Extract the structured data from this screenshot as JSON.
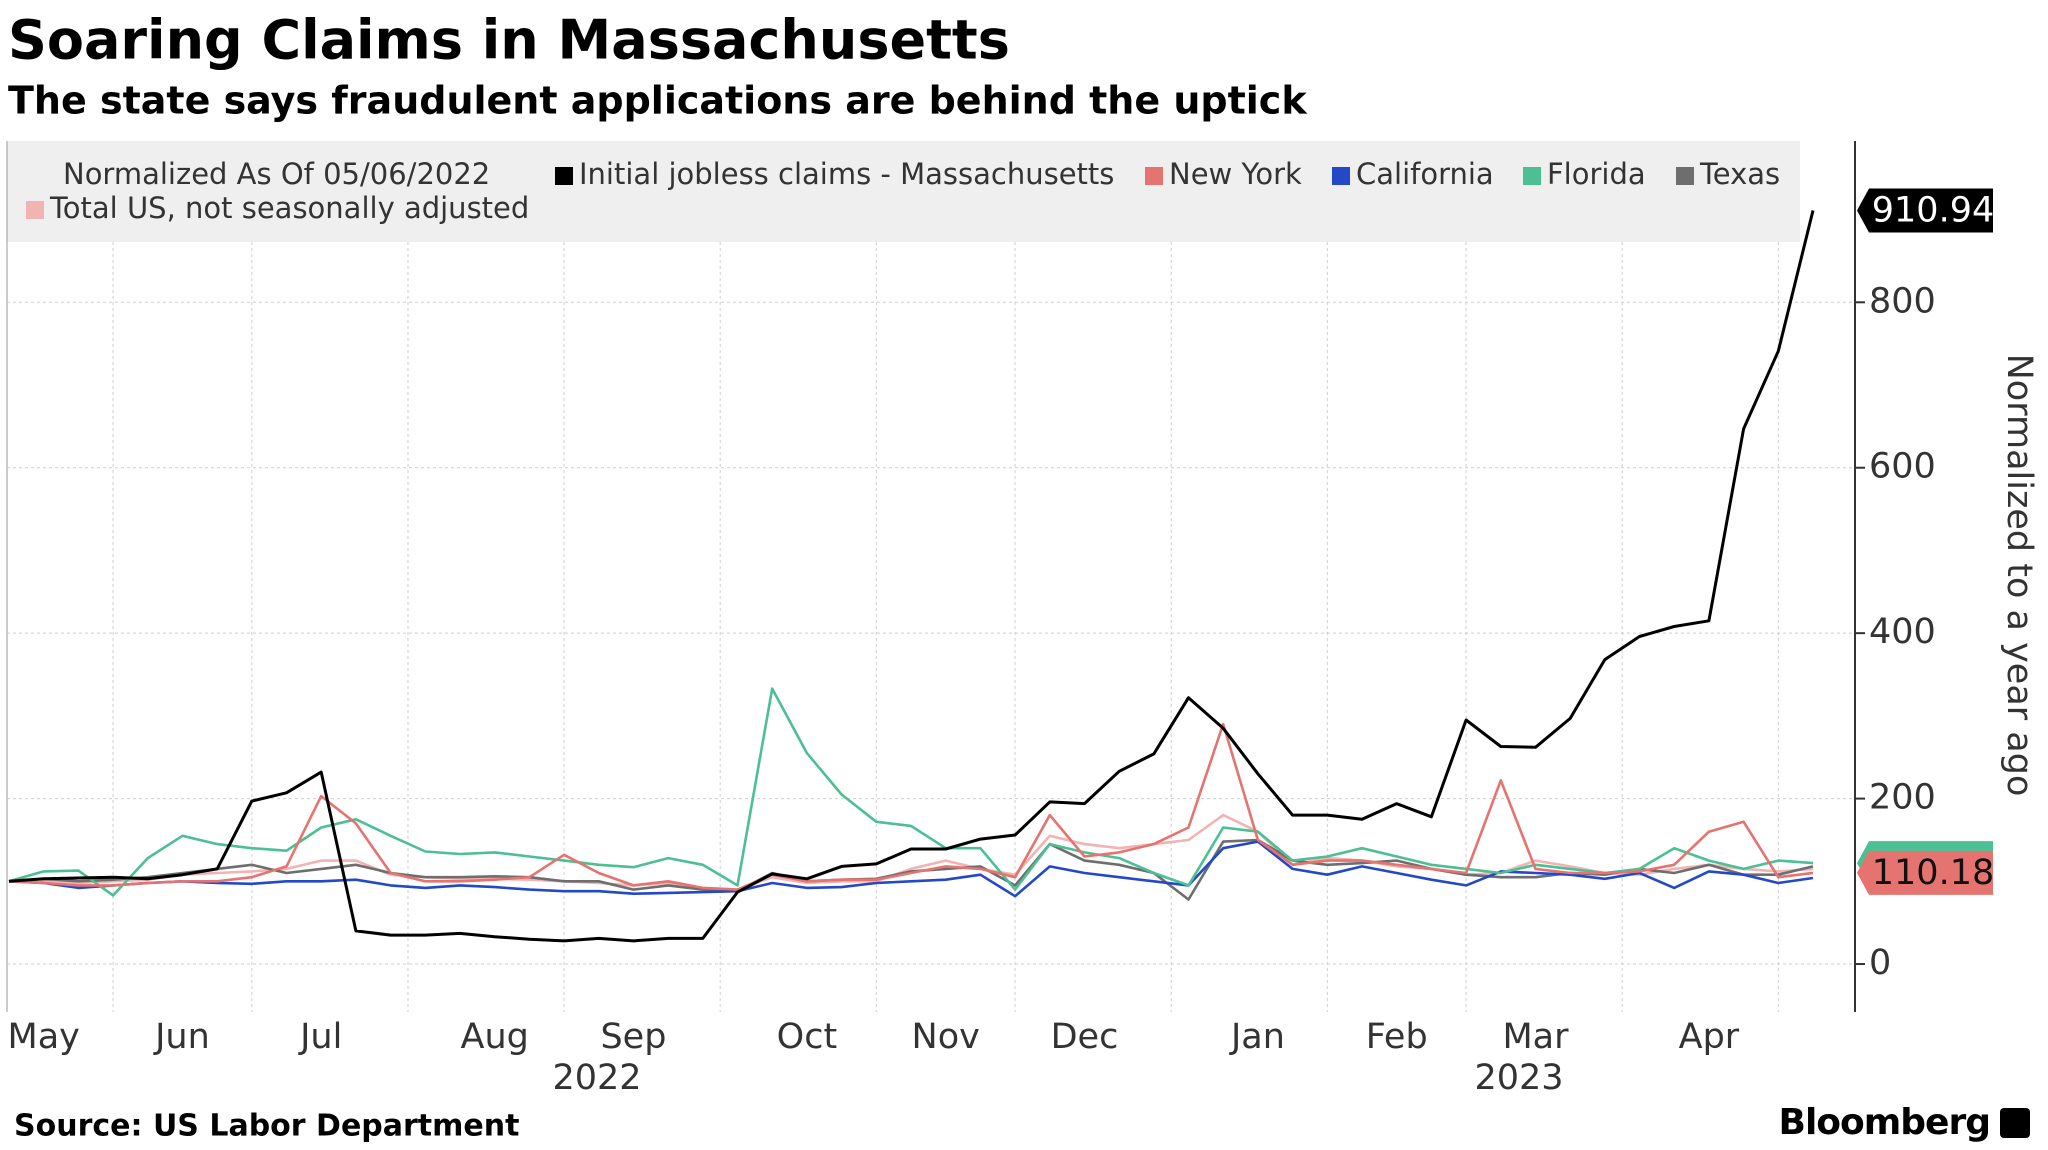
{
  "chart_data": {
    "type": "line",
    "title": "Soaring Claims in Massachusetts",
    "subtitle": "The state says fraudulent applications are behind the uptick",
    "legend_title": "Normalized As Of 05/06/2022",
    "y_label": "Normalized to a year ago",
    "source": "Source: US Labor Department",
    "brand": "Bloomberg",
    "categories": [
      null,
      "May",
      null,
      null,
      null,
      "Jun",
      null,
      null,
      null,
      "Jul",
      null,
      null,
      null,
      null,
      "Aug",
      null,
      null,
      null,
      "Sep",
      null,
      null,
      null,
      null,
      "Oct",
      null,
      null,
      null,
      "Nov",
      null,
      null,
      null,
      "Dec",
      null,
      null,
      null,
      null,
      "Jan",
      null,
      null,
      null,
      "Feb",
      null,
      null,
      null,
      "Mar",
      null,
      null,
      null,
      null,
      "Apr",
      null,
      null,
      null
    ],
    "year_labels": [
      "2022",
      "2023"
    ],
    "ylim": [
      -58,
      995
    ],
    "yticks": [
      0,
      200,
      400,
      600,
      800
    ],
    "grid": true,
    "series": [
      {
        "name": "Total US, not seasonally adjusted",
        "color": "#f2b3b3",
        "values": [
          100,
          100,
          98,
          100,
          102,
          108,
          110,
          112,
          115,
          125,
          125,
          108,
          105,
          103,
          103,
          102,
          100,
          98,
          95,
          98,
          92,
          90,
          105,
          98,
          100,
          100,
          115,
          125,
          115,
          108,
          155,
          145,
          140,
          145,
          150,
          180,
          160,
          120,
          128,
          125,
          118,
          115,
          108,
          110,
          125,
          118,
          110,
          108,
          115,
          120,
          115,
          112,
          115
        ]
      },
      {
        "name": "Texas",
        "color": "#6e6e6e",
        "values": [
          100,
          103,
          100,
          102,
          105,
          110,
          115,
          120,
          110,
          115,
          120,
          110,
          105,
          105,
          106,
          105,
          100,
          100,
          90,
          95,
          90,
          88,
          110,
          100,
          102,
          103,
          112,
          115,
          118,
          95,
          145,
          125,
          120,
          110,
          78,
          148,
          150,
          125,
          120,
          122,
          125,
          115,
          108,
          105,
          105,
          110,
          108,
          115,
          110,
          120,
          108,
          108,
          118
        ]
      },
      {
        "name": "California",
        "color": "#2348c8",
        "values": [
          100,
          98,
          92,
          95,
          98,
          100,
          98,
          97,
          100,
          100,
          102,
          95,
          92,
          95,
          93,
          90,
          88,
          88,
          85,
          86,
          87,
          88,
          98,
          92,
          93,
          98,
          100,
          102,
          108,
          82,
          118,
          110,
          105,
          100,
          95,
          140,
          148,
          115,
          108,
          118,
          110,
          102,
          95,
          112,
          110,
          108,
          103,
          110,
          92,
          112,
          108,
          98,
          104
        ]
      },
      {
        "name": "Florida",
        "color": "#4cbf94",
        "values": [
          100,
          112,
          113,
          83,
          128,
          155,
          145,
          140,
          137,
          165,
          175,
          155,
          136,
          133,
          135,
          130,
          125,
          120,
          117,
          128,
          120,
          95,
          333,
          255,
          205,
          172,
          167,
          140,
          140,
          90,
          145,
          135,
          128,
          110,
          95,
          165,
          160,
          125,
          130,
          140,
          130,
          120,
          115,
          110,
          120,
          115,
          110,
          115,
          140,
          125,
          115,
          125,
          122
        ]
      },
      {
        "name": "New York",
        "color": "#e5736f",
        "values": [
          100,
          98,
          95,
          95,
          98,
          100,
          100,
          105,
          118,
          203,
          170,
          110,
          100,
          100,
          102,
          105,
          132,
          110,
          95,
          100,
          92,
          90,
          108,
          100,
          102,
          102,
          110,
          118,
          115,
          105,
          180,
          130,
          135,
          145,
          165,
          290,
          150,
          120,
          125,
          125,
          120,
          115,
          110,
          222,
          115,
          110,
          110,
          112,
          120,
          160,
          172,
          105,
          110.18
        ]
      },
      {
        "name": "Initial jobless claims - Massachusetts",
        "color": "#000000",
        "values": [
          100,
          103,
          104,
          105,
          103,
          108,
          115,
          197,
          207,
          232,
          40,
          35,
          35,
          37,
          33,
          30,
          28,
          31,
          28,
          31,
          31,
          87,
          109,
          103,
          118,
          121,
          139,
          139,
          151,
          156,
          196,
          194,
          233,
          254,
          322,
          285,
          230,
          180,
          180,
          175,
          194,
          178,
          295,
          263,
          262,
          297,
          368,
          396,
          408,
          415,
          647,
          741,
          910.94
        ]
      }
    ]
  }
}
